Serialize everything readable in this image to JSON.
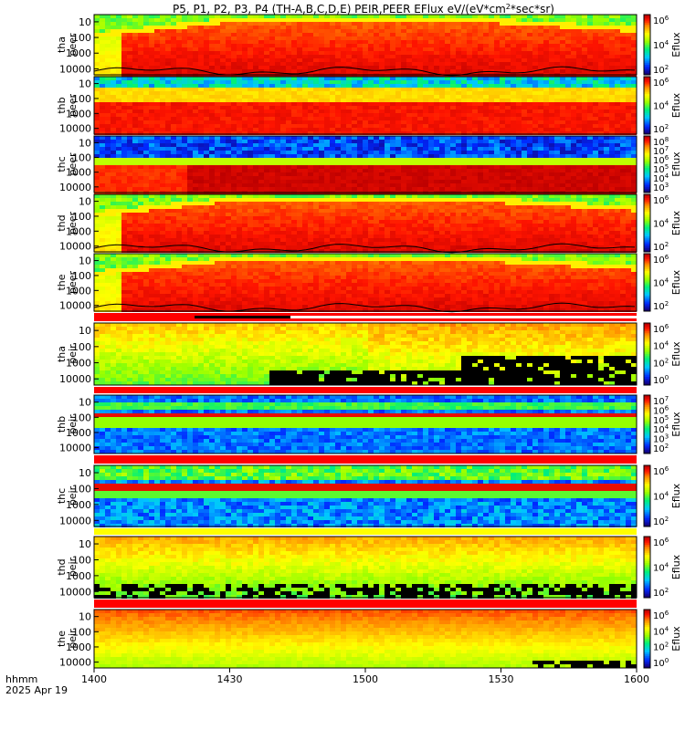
{
  "chart_data": {
    "type": "heatmap",
    "title": {
      "prefix": "P5, P1, P2, P3, P4 (TH-A,B,C,D,E) PEIR,PEER EFlux eV/(eV*cm",
      "sup": "2",
      "suffix": "*sec*sr)"
    },
    "x_axis": {
      "label_line1": "hhmm",
      "label_line2": "2025 Apr 19",
      "ticks": [
        "1400",
        "1430",
        "1500",
        "1530",
        "1600"
      ],
      "range": [
        "14:00",
        "16:00"
      ]
    },
    "colorbar_label": "Eflux",
    "panels": [
      {
        "probe": "tha",
        "species": "peer",
        "y_ticks": [
          "10000",
          "1000",
          "100",
          "10"
        ],
        "cbar_ticks": [
          {
            "base": "10",
            "exp": "6"
          },
          {
            "base": "10",
            "exp": "4"
          },
          {
            "base": "10",
            "exp": "2"
          }
        ],
        "pattern": "electron_sheet",
        "has_curve": true
      },
      {
        "probe": "thb",
        "species": "peer",
        "y_ticks": [
          "10000",
          "1000",
          "100",
          "10"
        ],
        "cbar_ticks": [
          {
            "base": "10",
            "exp": "6"
          },
          {
            "base": "10",
            "exp": "4"
          },
          {
            "base": "10",
            "exp": "2"
          }
        ],
        "pattern": "electron_flat",
        "has_curve": false
      },
      {
        "probe": "thc",
        "species": "peer",
        "y_ticks": [
          "10000",
          "1000",
          "100",
          "10"
        ],
        "cbar_ticks": [
          {
            "base": "10",
            "exp": "8"
          },
          {
            "base": "10",
            "exp": "7"
          },
          {
            "base": "10",
            "exp": "6"
          },
          {
            "base": "10",
            "exp": "5"
          },
          {
            "base": "10",
            "exp": "4"
          },
          {
            "base": "10",
            "exp": "3"
          }
        ],
        "pattern": "electron_noisy",
        "has_curve": false
      },
      {
        "probe": "thd",
        "species": "peer",
        "y_ticks": [
          "10000",
          "1000",
          "100",
          "10"
        ],
        "cbar_ticks": [
          {
            "base": "10",
            "exp": "6"
          },
          {
            "base": "10",
            "exp": "4"
          },
          {
            "base": "10",
            "exp": "2"
          }
        ],
        "pattern": "electron_sheet",
        "has_curve": true
      },
      {
        "probe": "the",
        "species": "peer",
        "y_ticks": [
          "10000",
          "1000",
          "100",
          "10"
        ],
        "cbar_ticks": [
          {
            "base": "10",
            "exp": "6"
          },
          {
            "base": "10",
            "exp": "4"
          },
          {
            "base": "10",
            "exp": "2"
          }
        ],
        "pattern": "electron_sheet",
        "has_curve": true
      },
      {
        "probe": "tha",
        "species": "peir",
        "y_ticks": [
          "10000",
          "1000",
          "100",
          "10"
        ],
        "cbar_ticks": [
          {
            "base": "10",
            "exp": "6"
          },
          {
            "base": "10",
            "exp": "4"
          },
          {
            "base": "10",
            "exp": "2"
          },
          {
            "base": "10",
            "exp": "0"
          }
        ],
        "pattern": "ion_hot",
        "has_curve": false
      },
      {
        "probe": "thb",
        "species": "peir",
        "y_ticks": [
          "10000",
          "1000",
          "100",
          "10"
        ],
        "cbar_ticks": [
          {
            "base": "10",
            "exp": "7"
          },
          {
            "base": "10",
            "exp": "6"
          },
          {
            "base": "10",
            "exp": "5"
          },
          {
            "base": "10",
            "exp": "4"
          },
          {
            "base": "10",
            "exp": "3"
          },
          {
            "base": "10",
            "exp": "2"
          }
        ],
        "pattern": "ion_solarwind",
        "has_curve": false
      },
      {
        "probe": "thc",
        "species": "peir",
        "y_ticks": [
          "10000",
          "1000",
          "100",
          "10"
        ],
        "cbar_ticks": [
          {
            "base": "10",
            "exp": "6"
          },
          {
            "base": "10",
            "exp": "4"
          },
          {
            "base": "10",
            "exp": "2"
          }
        ],
        "pattern": "ion_solarwind2",
        "has_curve": false
      },
      {
        "probe": "thd",
        "species": "peir",
        "y_ticks": [
          "10000",
          "1000",
          "100",
          "10"
        ],
        "cbar_ticks": [
          {
            "base": "10",
            "exp": "6"
          },
          {
            "base": "10",
            "exp": "4"
          },
          {
            "base": "10",
            "exp": "2"
          }
        ],
        "pattern": "ion_hot2",
        "has_curve": false
      },
      {
        "probe": "the",
        "species": "peir",
        "y_ticks": [
          "10000",
          "1000",
          "100",
          "10"
        ],
        "cbar_ticks": [
          {
            "base": "10",
            "exp": "6"
          },
          {
            "base": "10",
            "exp": "4"
          },
          {
            "base": "10",
            "exp": "2"
          },
          {
            "base": "10",
            "exp": "0"
          }
        ],
        "pattern": "ion_hot3",
        "has_curve": false
      }
    ],
    "colors": {
      "bar_red": "#ff0000",
      "bar_black": "#000000"
    }
  }
}
